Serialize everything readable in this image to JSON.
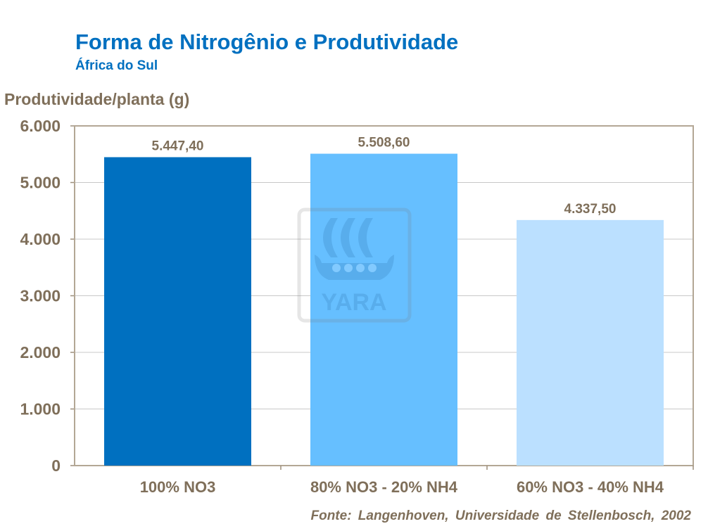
{
  "chart_data": {
    "type": "bar",
    "title": "Forma de Nitrogênio e Produtividade",
    "subtitle": "África do Sul",
    "ylabel": "Produtividade/planta (g)",
    "xlabel": "",
    "categories": [
      "100% NO3",
      "80% NO3 - 20% NH4",
      "60% NO3 - 40% NH4"
    ],
    "values": [
      5447.4,
      5508.6,
      4337.5
    ],
    "data_labels": [
      "5.447,40",
      "5.508,60",
      "4.337,50"
    ],
    "bar_colors": [
      "#0070C0",
      "#66BFFF",
      "#BBE0FF"
    ],
    "ylim": [
      0,
      6000
    ],
    "yticks": [
      0,
      1000,
      2000,
      3000,
      4000,
      5000,
      6000
    ],
    "ytick_labels": [
      "0",
      "1.000",
      "2.000",
      "3.000",
      "4.000",
      "5.000",
      "6.000"
    ],
    "grid": true,
    "legend": "none",
    "source": "Fonte: Langenhoven, Universidade de Stellenbosch, 2002"
  },
  "watermark": "YARA",
  "colors": {
    "title": "#0070C0",
    "text": "#7F6F5A"
  }
}
